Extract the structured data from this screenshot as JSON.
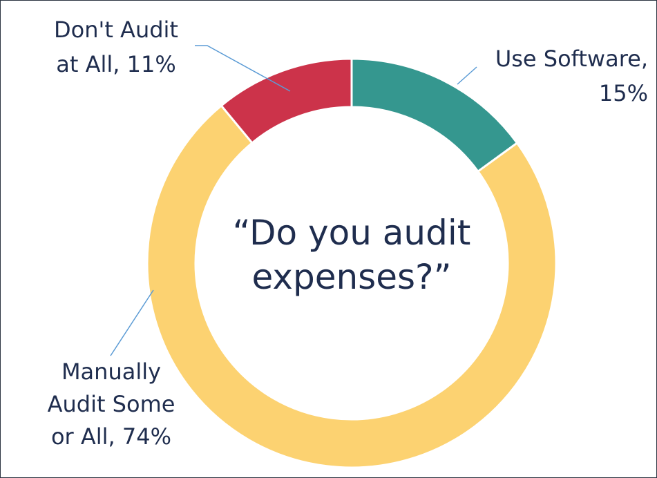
{
  "chart_data": {
    "type": "pie",
    "title": "“Do you audit expenses?”",
    "values": [
      15,
      74,
      11
    ],
    "value_labels": [
      [
        "Use Software,",
        "15%"
      ],
      [
        "Manually",
        "Audit Some",
        "or All, 74%"
      ],
      [
        "Don't Audit",
        "at All, 11%"
      ]
    ],
    "colors": [
      "#35978f",
      "#fcd271",
      "#cc334a"
    ]
  }
}
